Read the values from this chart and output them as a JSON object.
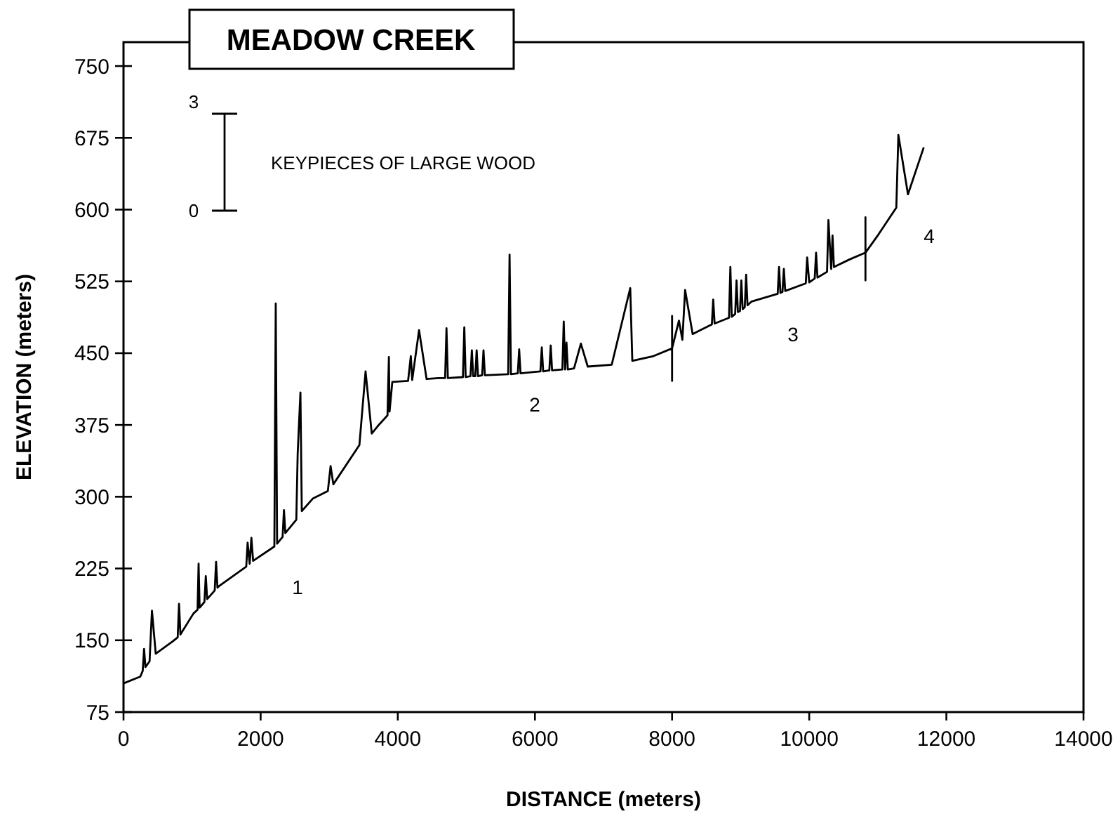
{
  "chart_data": {
    "type": "line",
    "title": "MEADOW CREEK",
    "xlabel": "DISTANCE (meters)",
    "ylabel": "ELEVATION (meters)",
    "xlim": [
      0,
      14000
    ],
    "xticks": [
      0,
      2000,
      4000,
      6000,
      8000,
      10000,
      12000,
      14000
    ],
    "ylim": [
      75,
      775
    ],
    "yticks": [
      75,
      150,
      225,
      300,
      375,
      450,
      525,
      600,
      675,
      750
    ],
    "grid": false,
    "marker": "none",
    "line_style": "solid",
    "series": [
      {
        "color": "#000000",
        "x": [
          0,
          245,
          280,
          300,
          320,
          380,
          415,
          470,
          720,
          790,
          810,
          830,
          1020,
          1080,
          1095,
          1110,
          1180,
          1200,
          1220,
          1330,
          1350,
          1370,
          1400,
          1790,
          1810,
          1840,
          1865,
          1890,
          2200,
          2220,
          2240,
          2320,
          2340,
          2360,
          2520,
          2540,
          2580,
          2600,
          2760,
          2980,
          3020,
          3060,
          3440,
          3530,
          3620,
          3710,
          3850,
          3870,
          3880,
          3920,
          4150,
          4190,
          4210,
          4310,
          4420,
          4600,
          4690,
          4710,
          4730,
          4950,
          4970,
          4990,
          5060,
          5080,
          5100,
          5130,
          5150,
          5170,
          5230,
          5250,
          5270,
          5610,
          5630,
          5650,
          5750,
          5770,
          5790,
          6080,
          6100,
          6120,
          6210,
          6230,
          6250,
          6400,
          6420,
          6440,
          6460,
          6480,
          6570,
          6670,
          6770,
          7120,
          7390,
          7420,
          7730,
          8000,
          8000,
          8000,
          8000,
          8100,
          8150,
          8190,
          8300,
          8410,
          8580,
          8600,
          8620,
          8830,
          8850,
          8870,
          8920,
          8940,
          8960,
          8990,
          9010,
          9030,
          9060,
          9080,
          9100,
          9160,
          9540,
          9560,
          9580,
          9610,
          9630,
          9650,
          9950,
          9970,
          10000,
          10080,
          10100,
          10120,
          10260,
          10280,
          10320,
          10340,
          10360,
          10590,
          10820,
          10820,
          10820,
          10820,
          10990,
          11270,
          11300,
          11440,
          11670
        ],
        "values": [
          105,
          112,
          118,
          141,
          122,
          128,
          181,
          136,
          149,
          153,
          188,
          156,
          178,
          182,
          230,
          184,
          190,
          217,
          193,
          202,
          232,
          205,
          207,
          227,
          252,
          230,
          257,
          233,
          248,
          502,
          251,
          258,
          286,
          262,
          276,
          345,
          409,
          285,
          298,
          306,
          332,
          313,
          354,
          431,
          366,
          374,
          385,
          446,
          389,
          420,
          421,
          447,
          422,
          474,
          423,
          424,
          424,
          476,
          424,
          425,
          477,
          425,
          426,
          453,
          426,
          426,
          453,
          426,
          427,
          453,
          427,
          428,
          553,
          428,
          429,
          454,
          429,
          431,
          456,
          431,
          432,
          458,
          432,
          433,
          483,
          433,
          461,
          433,
          434,
          460,
          436,
          438,
          518,
          442,
          447,
          455,
          489,
          421,
          455,
          484,
          464,
          516,
          470,
          474,
          480,
          506,
          481,
          487,
          540,
          488,
          491,
          526,
          493,
          494,
          526,
          496,
          498,
          532,
          500,
          504,
          512,
          540,
          513,
          514,
          538,
          515,
          523,
          550,
          524,
          528,
          555,
          529,
          535,
          589,
          538,
          573,
          540,
          548,
          555,
          592,
          526,
          555,
          572,
          602,
          678,
          616,
          665
        ]
      }
    ],
    "annotations": [
      "1",
      "2",
      "3",
      "4",
      "3",
      "0",
      "KEYPIECES OF LARGE WOOD"
    ]
  }
}
